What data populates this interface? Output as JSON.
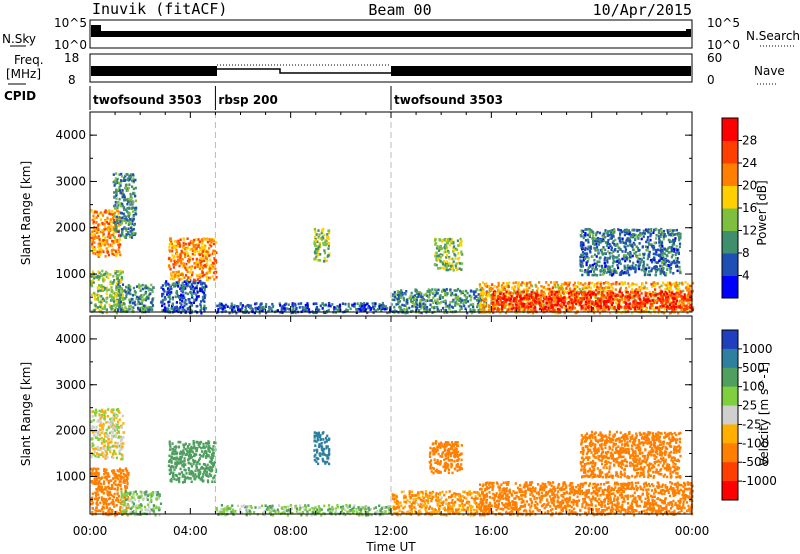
{
  "header": {
    "title": "Inuvik (fitACF)",
    "beam": "Beam 00",
    "date": "10/Apr/2015"
  },
  "top_panels": {
    "nsky_label": "N.Sky",
    "nsky_ticks": [
      "10^5",
      "10^0"
    ],
    "nsearch_label": "N.Search",
    "nsearch_ticks": [
      "10^5",
      "10^0"
    ],
    "freq_label": "Freq.",
    "freq_unit": "[MHz]",
    "freq_ticks": [
      "18",
      "8"
    ],
    "nave_label": "Nave",
    "nave_ticks": [
      "60",
      "0"
    ],
    "cpid_label": "CPID",
    "cpid_segments": [
      {
        "name": "twofsound 3503",
        "start": 0,
        "end": 5
      },
      {
        "name": "rbsp 200",
        "start": 5,
        "end": 12
      },
      {
        "name": "twofsound 3503",
        "start": 12,
        "end": 24
      }
    ]
  },
  "chart_data": [
    {
      "type": "heatmap",
      "name": "power",
      "ylabel": "Slant Range [km]",
      "xlabel": "",
      "xlim": [
        0,
        24
      ],
      "ylim": [
        180,
        4500
      ],
      "yticks": [
        "1000",
        "2000",
        "3000",
        "4000"
      ],
      "colorbar_label": "Power [dB]",
      "colorbar_ticks": [
        "4",
        "8",
        "12",
        "16",
        "20",
        "24",
        "28"
      ],
      "colorbar_colors": [
        "#0000ff",
        "#1f4fb4",
        "#3f8f6f",
        "#7fbf3f",
        "#ffcf00",
        "#ff7f00",
        "#ff3f00",
        "#ff0000"
      ],
      "regions": [
        {
          "t0": 0.0,
          "t1": 1.3,
          "r0": 180,
          "r1": 1100,
          "v": 14
        },
        {
          "t0": 0.0,
          "t1": 1.2,
          "r0": 1400,
          "r1": 2400,
          "v": 22
        },
        {
          "t0": 0.9,
          "t1": 1.8,
          "r0": 1800,
          "r1": 3200,
          "v": 10
        },
        {
          "t0": 1.0,
          "t1": 2.5,
          "r0": 200,
          "r1": 800,
          "v": 10
        },
        {
          "t0": 2.8,
          "t1": 4.6,
          "r0": 180,
          "r1": 900,
          "v": 6
        },
        {
          "t0": 3.1,
          "t1": 5.0,
          "r0": 900,
          "r1": 1800,
          "v": 22
        },
        {
          "t0": 5.0,
          "t1": 12.0,
          "r0": 180,
          "r1": 400,
          "v": 6
        },
        {
          "t0": 8.9,
          "t1": 9.5,
          "r0": 1300,
          "r1": 2000,
          "v": 14
        },
        {
          "t0": 12.0,
          "t1": 15.8,
          "r0": 180,
          "r1": 700,
          "v": 10
        },
        {
          "t0": 13.7,
          "t1": 14.8,
          "r0": 1100,
          "r1": 1800,
          "v": 14
        },
        {
          "t0": 15.5,
          "t1": 24.0,
          "r0": 180,
          "r1": 850,
          "v": 20
        },
        {
          "t0": 16.0,
          "t1": 24.0,
          "r0": 250,
          "r1": 650,
          "v": 28
        },
        {
          "t0": 19.5,
          "t1": 23.5,
          "r0": 1000,
          "r1": 2000,
          "v": 8
        }
      ]
    },
    {
      "type": "heatmap",
      "name": "velocity",
      "ylabel": "Slant Range [km]",
      "xlabel": "Time UT",
      "xlim": [
        0,
        24
      ],
      "ylim": [
        180,
        4500
      ],
      "xticks": [
        "00:00",
        "04:00",
        "08:00",
        "12:00",
        "16:00",
        "20:00",
        "00:00"
      ],
      "yticks": [
        "1000",
        "2000",
        "3000",
        "4000"
      ],
      "colorbar_label": "Velocity [m s^-1]",
      "colorbar_ticks": [
        "1000",
        "500",
        "100",
        "25",
        "-25",
        "-100",
        "-500",
        "-1000"
      ],
      "colorbar_colors": [
        "#1f3fbf",
        "#2f7f9f",
        "#4f9f5f",
        "#7fcf3f",
        "#cfcfcf",
        "#ffaf00",
        "#ff7f00",
        "#ff3f00",
        "#ff0000"
      ],
      "regions": [
        {
          "t0": 0.0,
          "t1": 1.3,
          "r0": 1400,
          "r1": 2500,
          "v": 0
        },
        {
          "t0": 0.0,
          "t1": 1.5,
          "r0": 180,
          "r1": 1200,
          "v": -200
        },
        {
          "t0": 1.2,
          "t1": 2.8,
          "r0": 180,
          "r1": 700,
          "v": 60
        },
        {
          "t0": 3.1,
          "t1": 5.0,
          "r0": 900,
          "r1": 1800,
          "v": 300
        },
        {
          "t0": 5.0,
          "t1": 12.0,
          "r0": 180,
          "r1": 400,
          "v": 60
        },
        {
          "t0": 8.9,
          "t1": 9.5,
          "r0": 1300,
          "r1": 2000,
          "v": 700
        },
        {
          "t0": 12.0,
          "t1": 15.8,
          "r0": 180,
          "r1": 700,
          "v": -100
        },
        {
          "t0": 13.5,
          "t1": 14.8,
          "r0": 1100,
          "r1": 1800,
          "v": -300
        },
        {
          "t0": 15.5,
          "t1": 24.0,
          "r0": 180,
          "r1": 900,
          "v": -200
        },
        {
          "t0": 19.5,
          "t1": 23.5,
          "r0": 1000,
          "r1": 2000,
          "v": -200
        }
      ]
    }
  ]
}
